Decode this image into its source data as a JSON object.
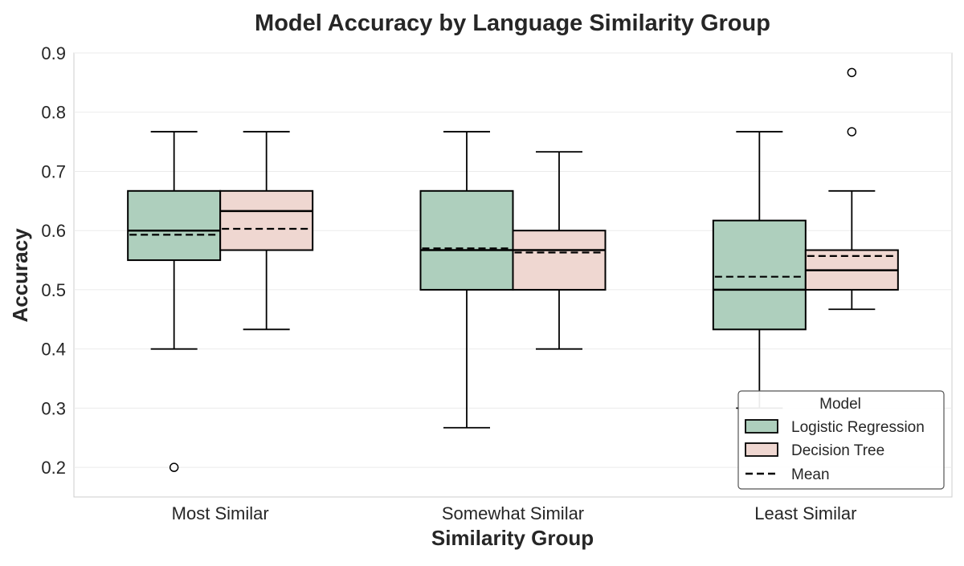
{
  "chart_data": {
    "type": "box",
    "title": "Model Accuracy by Language Similarity Group",
    "xlabel": "Similarity Group",
    "ylabel": "Accuracy",
    "ylim": [
      0.15,
      0.9
    ],
    "yticks": [
      "0.2",
      "0.3",
      "0.4",
      "0.5",
      "0.6",
      "0.7",
      "0.8",
      "0.9"
    ],
    "categories": [
      "Most Similar",
      "Somewhat Similar",
      "Least Similar"
    ],
    "grid": true,
    "legend": {
      "title": "Model",
      "position": "bottom-right",
      "mean_label": "Mean"
    },
    "series": [
      {
        "name": "Logistic Regression",
        "color": "#aecfbd",
        "boxes": [
          {
            "whisker_low": 0.4,
            "q1": 0.55,
            "median": 0.6,
            "q3": 0.667,
            "whisker_high": 0.767,
            "mean": 0.593,
            "outliers": [
              0.2
            ]
          },
          {
            "whisker_low": 0.267,
            "q1": 0.5,
            "median": 0.567,
            "q3": 0.667,
            "whisker_high": 0.767,
            "mean": 0.57,
            "outliers": []
          },
          {
            "whisker_low": 0.3,
            "q1": 0.433,
            "median": 0.5,
            "q3": 0.617,
            "whisker_high": 0.767,
            "mean": 0.522,
            "outliers": []
          }
        ]
      },
      {
        "name": "Decision Tree",
        "color": "#efd7d1",
        "boxes": [
          {
            "whisker_low": 0.433,
            "q1": 0.567,
            "median": 0.633,
            "q3": 0.667,
            "whisker_high": 0.767,
            "mean": 0.603,
            "outliers": []
          },
          {
            "whisker_low": 0.4,
            "q1": 0.5,
            "median": 0.567,
            "q3": 0.6,
            "whisker_high": 0.733,
            "mean": 0.563,
            "outliers": []
          },
          {
            "whisker_low": 0.467,
            "q1": 0.5,
            "median": 0.533,
            "q3": 0.567,
            "whisker_high": 0.667,
            "mean": 0.557,
            "outliers": [
              0.767,
              0.867
            ]
          }
        ]
      }
    ]
  }
}
